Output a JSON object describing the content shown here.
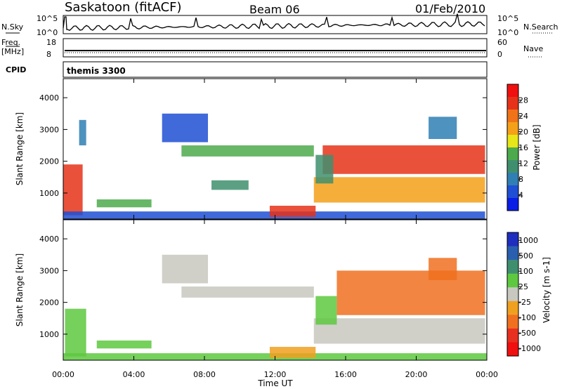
{
  "header": {
    "station": "Saskatoon (fitACF)",
    "beam": "Beam 06",
    "date": "01/Feb/2010"
  },
  "strips": {
    "nsky_label": "N.Sky",
    "nsearch_label": "N.Search",
    "freq_label_1": "Freq.",
    "freq_label_2": "[MHz]",
    "nave_label": "Nave",
    "cpid_label": "CPID",
    "cpid_value": "themis 3300",
    "nsky_ticks": [
      "10^5",
      "10^0"
    ],
    "nsearch_ticks": [
      "10^5",
      "10^0"
    ],
    "freq_ticks": [
      "18",
      "8"
    ],
    "nave_ticks": [
      "60",
      "0"
    ]
  },
  "chart_data": [
    {
      "type": "heatmap",
      "panel": "power",
      "xlabel": "",
      "ylabel": "Slant Range [km]",
      "x_ticks": [
        "00:00",
        "04:00",
        "08:00",
        "12:00",
        "16:00",
        "20:00",
        "00:00"
      ],
      "x_range_hours": [
        0,
        24
      ],
      "y_ticks": [
        1000,
        2000,
        3000,
        4000
      ],
      "ylim": [
        180,
        4600
      ],
      "colorbar_label": "Power [dB]",
      "colorbar_ticks": [
        4,
        8,
        12,
        16,
        20,
        24,
        28
      ],
      "colorbar_colors": [
        "#0a1ee6",
        "#1f4fd4",
        "#2f7fb4",
        "#3f8f6f",
        "#4caa4c",
        "#e6e619",
        "#f5a019",
        "#f07319",
        "#e63219",
        "#f01010"
      ],
      "series": [
        {
          "x": [
            0.0,
            1.1
          ],
          "y": [
            300,
            1900
          ],
          "value": 28
        },
        {
          "x": [
            0.9,
            1.3
          ],
          "y": [
            2500,
            3300
          ],
          "value": 8
        },
        {
          "x": [
            1.9,
            5.0
          ],
          "y": [
            550,
            800
          ],
          "value": 14
        },
        {
          "x": [
            0.0,
            23.9
          ],
          "y": [
            180,
            420
          ],
          "value": 6
        },
        {
          "x": [
            6.7,
            14.2
          ],
          "y": [
            2150,
            2500
          ],
          "value": 14
        },
        {
          "x": [
            5.6,
            8.2
          ],
          "y": [
            2600,
            3500
          ],
          "value": 6
        },
        {
          "x": [
            8.4,
            10.5
          ],
          "y": [
            1100,
            1400
          ],
          "value": 10
        },
        {
          "x": [
            11.7,
            14.3
          ],
          "y": [
            250,
            600
          ],
          "value": 28
        },
        {
          "x": [
            14.2,
            23.9
          ],
          "y": [
            700,
            1500
          ],
          "value": 22
        },
        {
          "x": [
            14.7,
            23.9
          ],
          "y": [
            1600,
            2500
          ],
          "value": 26
        },
        {
          "x": [
            20.7,
            22.3
          ],
          "y": [
            2700,
            3400
          ],
          "value": 8
        },
        {
          "x": [
            14.3,
            15.3
          ],
          "y": [
            1300,
            2200
          ],
          "value": 12
        }
      ]
    },
    {
      "type": "heatmap",
      "panel": "velocity",
      "xlabel": "Time UT",
      "ylabel": "Slant Range [km]",
      "x_ticks": [
        "00:00",
        "04:00",
        "08:00",
        "12:00",
        "16:00",
        "20:00",
        "00:00"
      ],
      "x_range_hours": [
        0,
        24
      ],
      "y_ticks": [
        1000,
        2000,
        3000,
        4000
      ],
      "ylim": [
        180,
        4600
      ],
      "colorbar_label": "Velocity [m s-1]",
      "colorbar_ticks": [
        1000,
        500,
        100,
        25,
        -25,
        -100,
        -500,
        -1000
      ],
      "colorbar_colors": [
        "#1e2ebe",
        "#2a5fb0",
        "#3f8f6f",
        "#5ec840",
        "#c8c8c0",
        "#f0a020",
        "#f07020",
        "#e83020",
        "#f01010"
      ],
      "series": [
        {
          "x": [
            0.0,
            24.0
          ],
          "y": [
            180,
            400
          ],
          "value": 60
        },
        {
          "x": [
            1.9,
            5.0
          ],
          "y": [
            550,
            800
          ],
          "value": 60
        },
        {
          "x": [
            0.1,
            1.3
          ],
          "y": [
            300,
            1800
          ],
          "value": 40
        },
        {
          "x": [
            6.7,
            14.2
          ],
          "y": [
            2150,
            2500
          ],
          "value": 0
        },
        {
          "x": [
            5.6,
            8.2
          ],
          "y": [
            2600,
            3500
          ],
          "value": 0
        },
        {
          "x": [
            11.7,
            14.3
          ],
          "y": [
            250,
            600
          ],
          "value": -100
        },
        {
          "x": [
            14.2,
            23.9
          ],
          "y": [
            700,
            1500
          ],
          "value": 0
        },
        {
          "x": [
            15.5,
            23.9
          ],
          "y": [
            1600,
            3000
          ],
          "value": -450
        },
        {
          "x": [
            20.7,
            22.3
          ],
          "y": [
            2700,
            3400
          ],
          "value": -450
        },
        {
          "x": [
            14.3,
            15.5
          ],
          "y": [
            1300,
            2200
          ],
          "value": 50
        }
      ]
    }
  ]
}
